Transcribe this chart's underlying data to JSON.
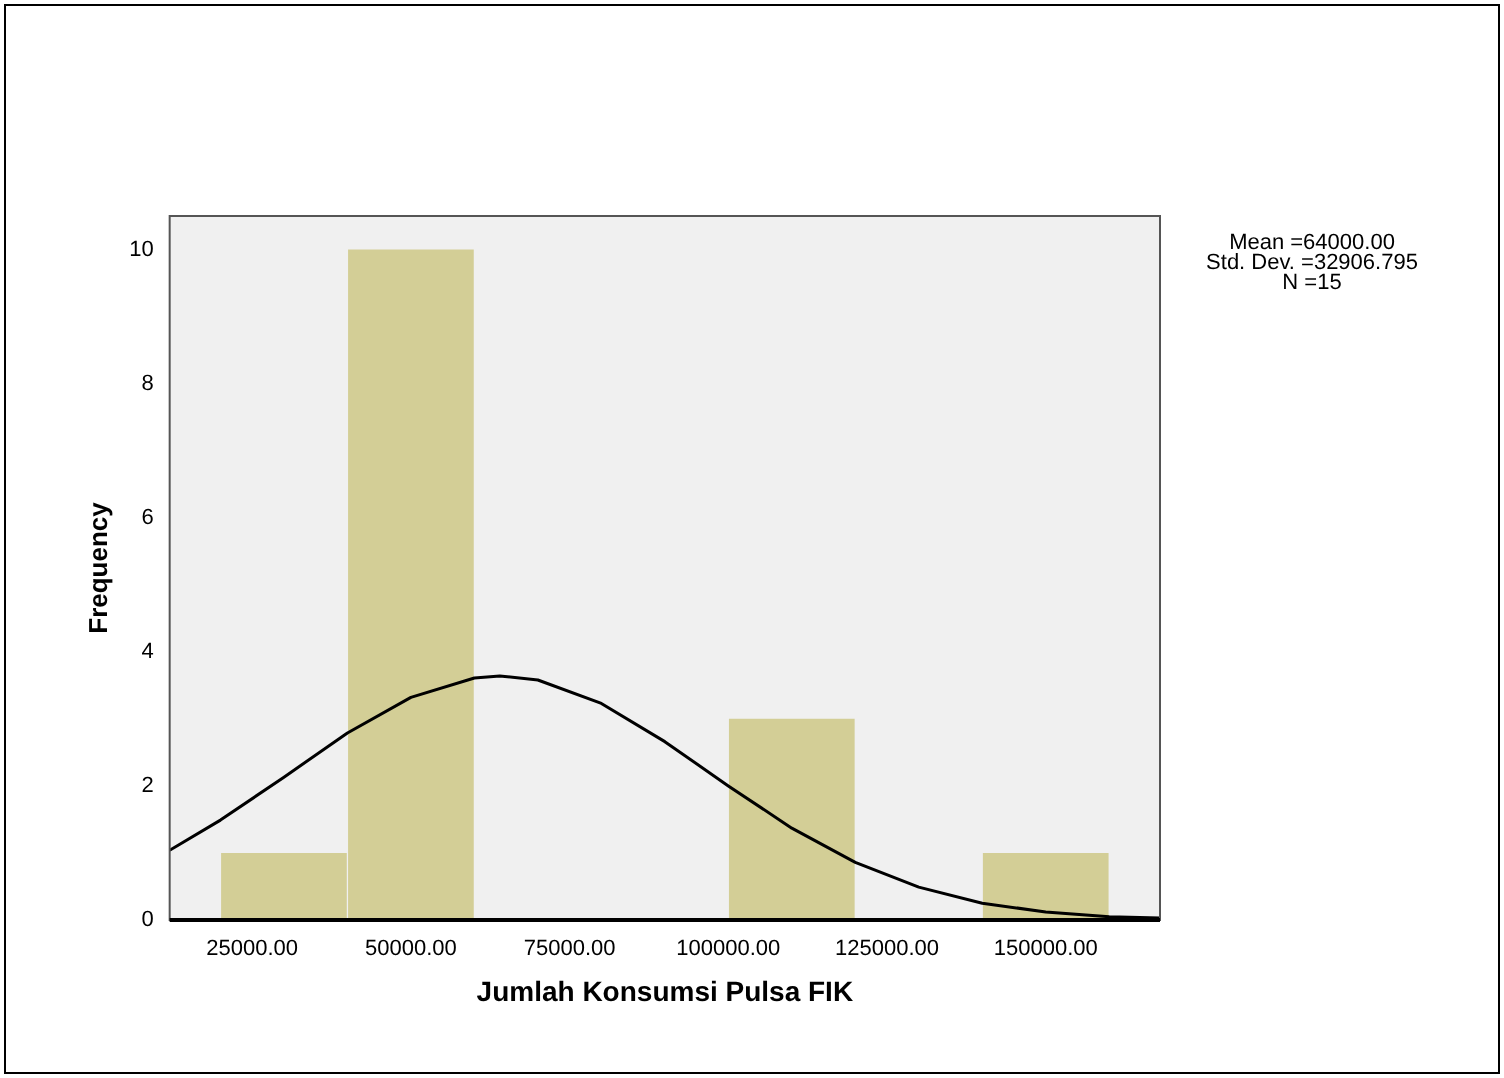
{
  "chart_data": {
    "type": "histogram",
    "xlabel": "Jumlah Konsumsi Pulsa FIK",
    "ylabel": "Frequency",
    "bins": [
      20000,
      40000,
      60000,
      80000,
      100000,
      120000,
      140000,
      160000
    ],
    "values": [
      1,
      10,
      0,
      0,
      3,
      0,
      1
    ],
    "color": "#d3ce96",
    "series": [
      {
        "type": "line",
        "color": "#000000",
        "x": [
          12000,
          20000,
          30000,
          40000,
          50000,
          60000,
          64000,
          70000,
          80000,
          90000,
          100000,
          110000,
          120000,
          130000,
          140000,
          150000,
          160000,
          168000
        ],
        "values": [
          1.04,
          1.49,
          2.13,
          2.79,
          3.32,
          3.61,
          3.64,
          3.58,
          3.23,
          2.66,
          2.0,
          1.37,
          0.86,
          0.49,
          0.25,
          0.12,
          0.05,
          0.03
        ]
      }
    ],
    "xlim": [
      12000,
      168000
    ],
    "xticks": [
      {
        "value": 25000,
        "label": "25000.00"
      },
      {
        "value": 50000,
        "label": "50000.00"
      },
      {
        "value": 75000,
        "label": "75000.00"
      },
      {
        "value": 100000,
        "label": "100000.00"
      },
      {
        "value": 125000,
        "label": "125000.00"
      },
      {
        "value": 150000,
        "label": "150000.00"
      }
    ],
    "ylim": [
      0,
      10.5
    ],
    "yticks": [
      0,
      2,
      4,
      6,
      8,
      10
    ],
    "annotations": [
      "Mean =64000.00",
      "Std. Dev. =32906.795",
      "N =15"
    ],
    "grid": false,
    "legend": false
  }
}
